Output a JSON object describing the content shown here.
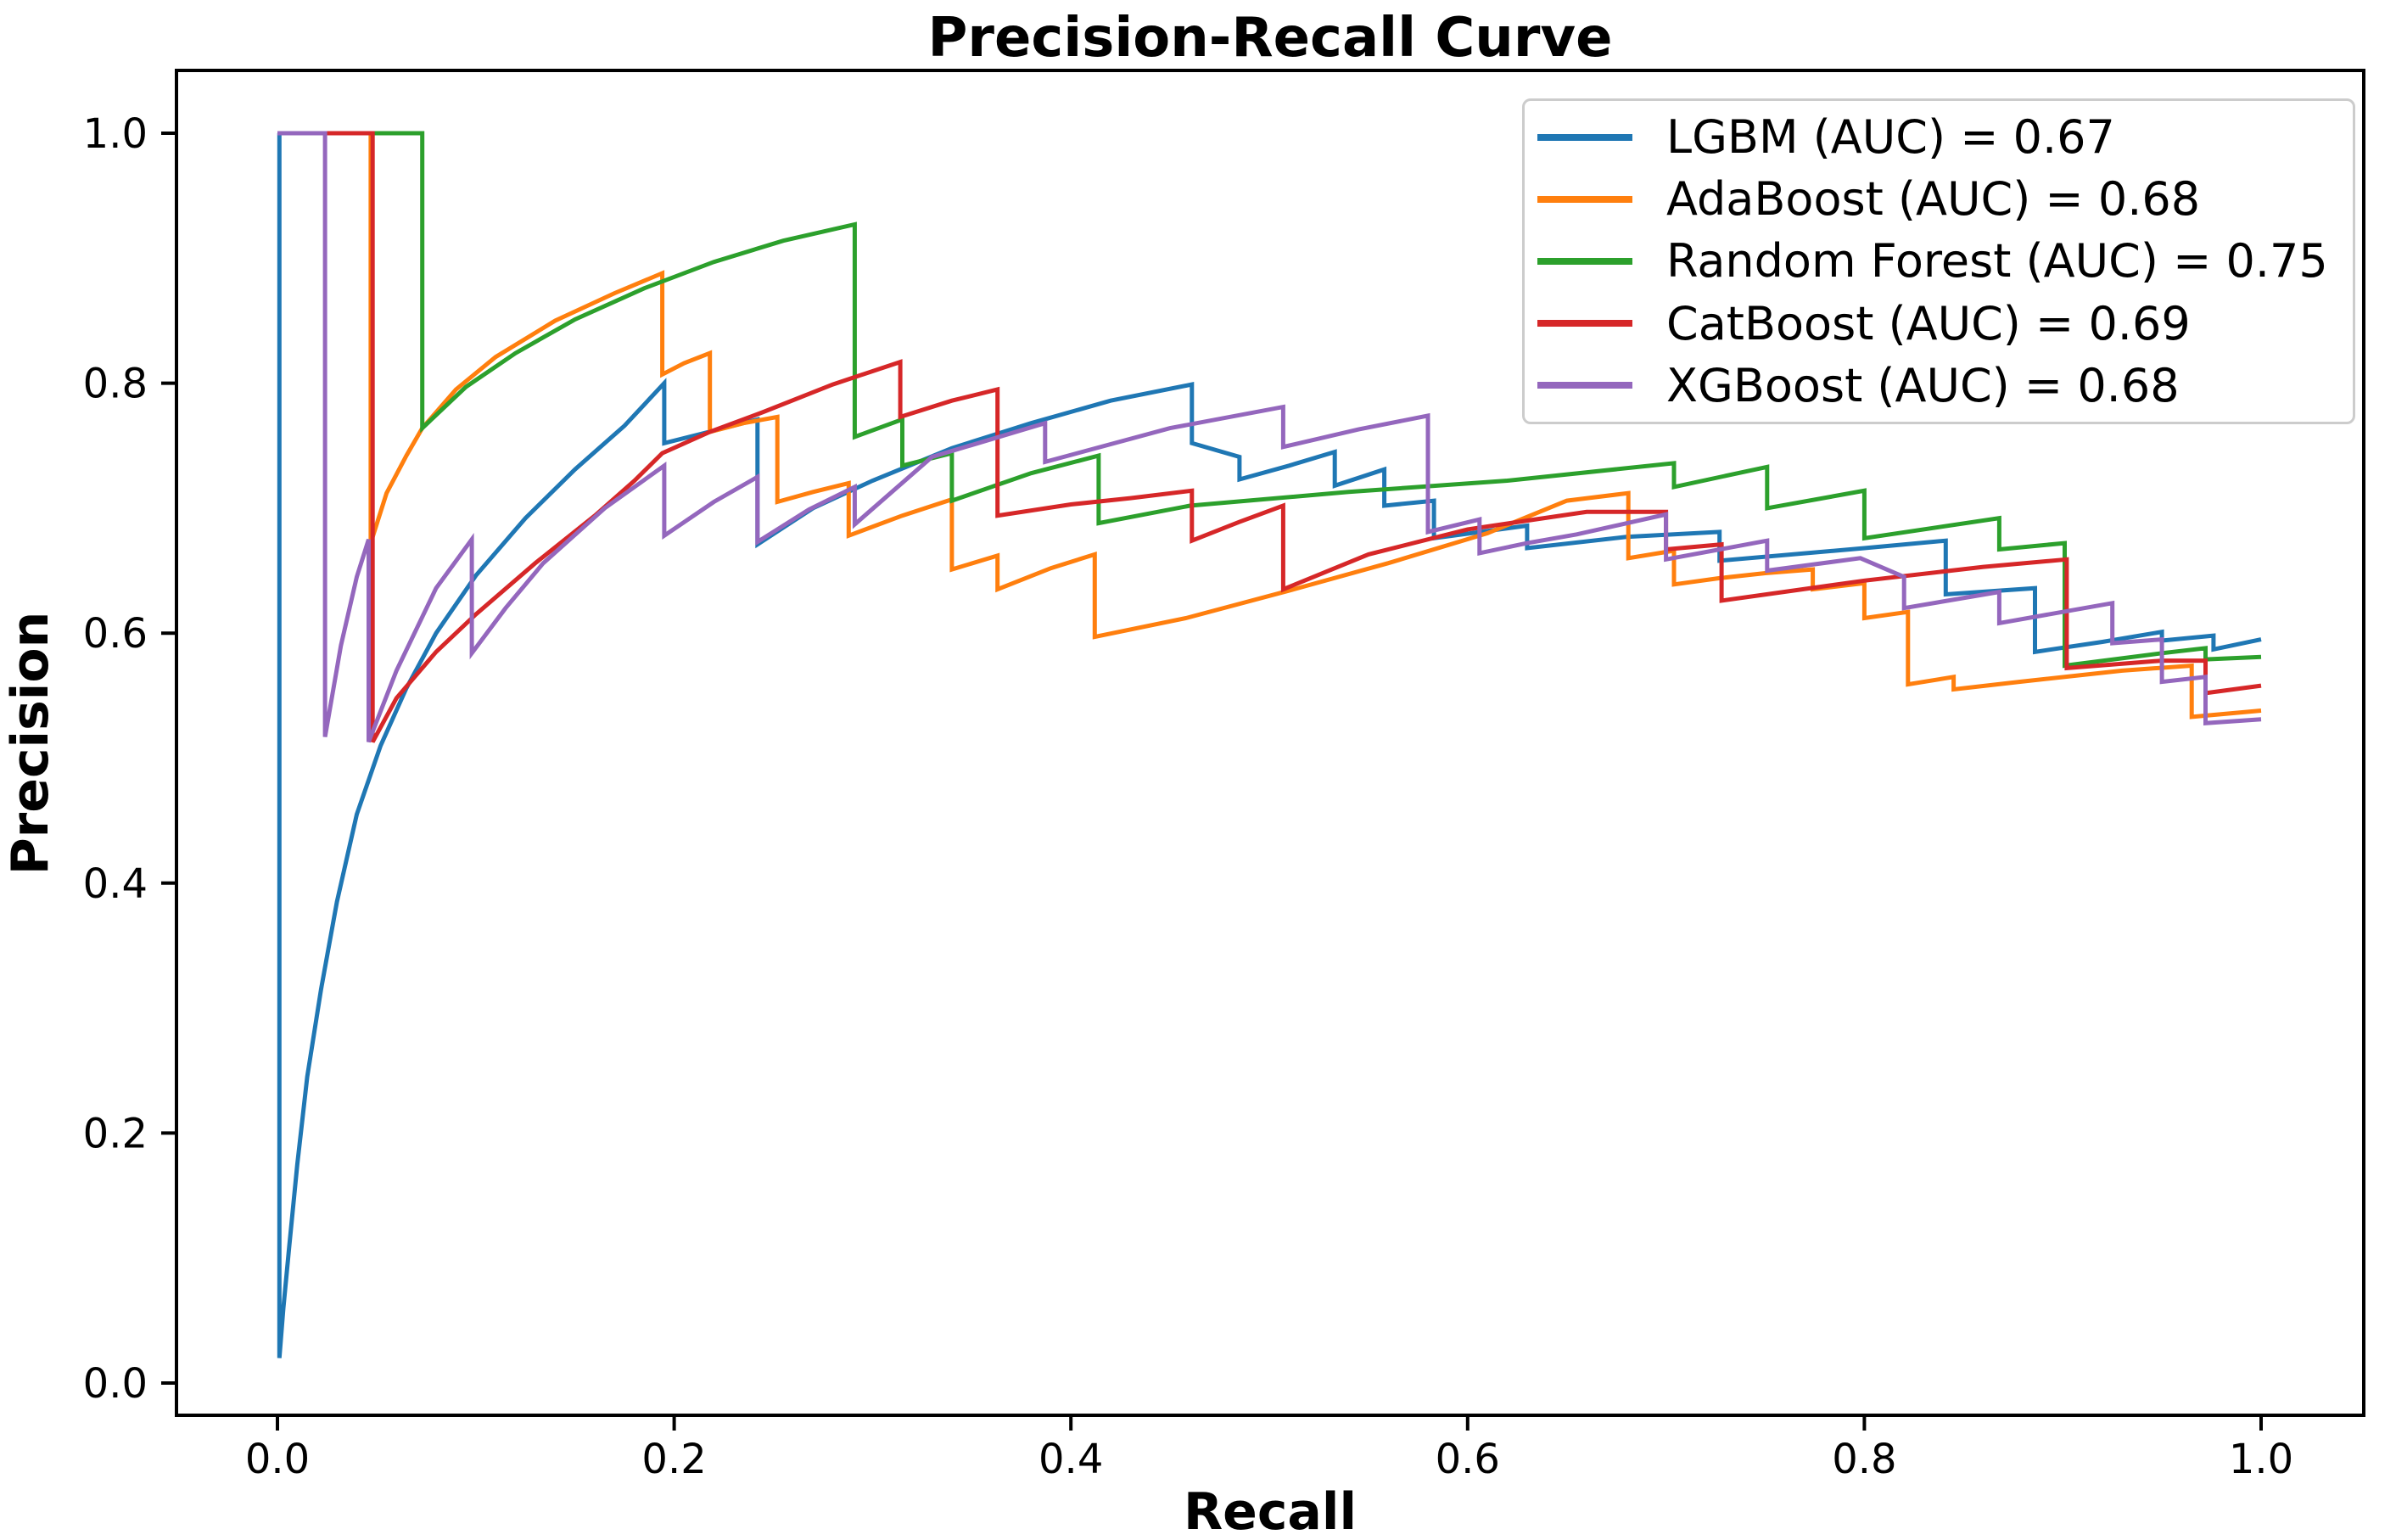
{
  "chart_data": {
    "type": "line",
    "title": "Precision-Recall Curve",
    "xlabel": "Recall",
    "ylabel": "Precision",
    "x_tick_labels": [
      "0.0",
      "0.2",
      "0.4",
      "0.6",
      "0.8",
      "1.0"
    ],
    "y_tick_labels": [
      "0.0",
      "0.2",
      "0.4",
      "0.6",
      "0.8",
      "1.0"
    ],
    "x_ticks": [
      0.0,
      0.2,
      0.4,
      0.6,
      0.8,
      1.0
    ],
    "y_ticks": [
      0.0,
      0.2,
      0.4,
      0.6,
      0.8,
      1.0
    ],
    "xlim": [
      -0.051,
      1.053
    ],
    "ylim": [
      -0.026,
      1.05
    ],
    "grid": false,
    "legend_position": "upper right",
    "series": [
      {
        "name": "LGBM",
        "auc": 0.67,
        "legend_label": "LGBM (AUC) = 0.67",
        "color": "#1f77b4",
        "points": [
          [
            0.0,
            1.0
          ],
          [
            0.001,
            1.0
          ],
          [
            0.001,
            0.02
          ],
          [
            0.003,
            0.06
          ],
          [
            0.006,
            0.11
          ],
          [
            0.01,
            0.175
          ],
          [
            0.015,
            0.245
          ],
          [
            0.022,
            0.315
          ],
          [
            0.03,
            0.385
          ],
          [
            0.04,
            0.455
          ],
          [
            0.052,
            0.51
          ],
          [
            0.065,
            0.556
          ],
          [
            0.08,
            0.6
          ],
          [
            0.1,
            0.646
          ],
          [
            0.125,
            0.692
          ],
          [
            0.15,
            0.731
          ],
          [
            0.175,
            0.766
          ],
          [
            0.195,
            0.8
          ],
          [
            0.195,
            0.752
          ],
          [
            0.22,
            0.762
          ],
          [
            0.242,
            0.771
          ],
          [
            0.242,
            0.671
          ],
          [
            0.27,
            0.7
          ],
          [
            0.3,
            0.722
          ],
          [
            0.34,
            0.748
          ],
          [
            0.38,
            0.768
          ],
          [
            0.42,
            0.786
          ],
          [
            0.461,
            0.799
          ],
          [
            0.461,
            0.752
          ],
          [
            0.485,
            0.741
          ],
          [
            0.485,
            0.723
          ],
          [
            0.51,
            0.734
          ],
          [
            0.533,
            0.745
          ],
          [
            0.533,
            0.718
          ],
          [
            0.558,
            0.731
          ],
          [
            0.558,
            0.702
          ],
          [
            0.583,
            0.706
          ],
          [
            0.583,
            0.676
          ],
          [
            0.63,
            0.686
          ],
          [
            0.63,
            0.668
          ],
          [
            0.68,
            0.677
          ],
          [
            0.727,
            0.681
          ],
          [
            0.727,
            0.658
          ],
          [
            0.8,
            0.668
          ],
          [
            0.841,
            0.674
          ],
          [
            0.841,
            0.631
          ],
          [
            0.886,
            0.636
          ],
          [
            0.886,
            0.585
          ],
          [
            0.92,
            0.593
          ],
          [
            0.95,
            0.601
          ],
          [
            0.95,
            0.594
          ],
          [
            0.976,
            0.598
          ],
          [
            0.976,
            0.587
          ],
          [
            1.0,
            0.595
          ]
        ]
      },
      {
        "name": "AdaBoost",
        "auc": 0.68,
        "legend_label": "AdaBoost (AUC) = 0.68",
        "color": "#ff7f0e",
        "points": [
          [
            0.0,
            1.0
          ],
          [
            0.047,
            1.0
          ],
          [
            0.047,
            0.672
          ],
          [
            0.055,
            0.712
          ],
          [
            0.065,
            0.742
          ],
          [
            0.073,
            0.764
          ],
          [
            0.09,
            0.795
          ],
          [
            0.11,
            0.821
          ],
          [
            0.14,
            0.85
          ],
          [
            0.17,
            0.872
          ],
          [
            0.194,
            0.888
          ],
          [
            0.194,
            0.807
          ],
          [
            0.205,
            0.816
          ],
          [
            0.218,
            0.824
          ],
          [
            0.218,
            0.761
          ],
          [
            0.235,
            0.768
          ],
          [
            0.252,
            0.773
          ],
          [
            0.252,
            0.705
          ],
          [
            0.27,
            0.713
          ],
          [
            0.288,
            0.72
          ],
          [
            0.288,
            0.678
          ],
          [
            0.315,
            0.694
          ],
          [
            0.34,
            0.707
          ],
          [
            0.34,
            0.651
          ],
          [
            0.363,
            0.662
          ],
          [
            0.363,
            0.635
          ],
          [
            0.39,
            0.652
          ],
          [
            0.412,
            0.663
          ],
          [
            0.412,
            0.597
          ],
          [
            0.458,
            0.612
          ],
          [
            0.51,
            0.634
          ],
          [
            0.56,
            0.656
          ],
          [
            0.61,
            0.68
          ],
          [
            0.65,
            0.706
          ],
          [
            0.681,
            0.712
          ],
          [
            0.681,
            0.66
          ],
          [
            0.704,
            0.666
          ],
          [
            0.704,
            0.639
          ],
          [
            0.727,
            0.644
          ],
          [
            0.75,
            0.648
          ],
          [
            0.774,
            0.651
          ],
          [
            0.774,
            0.635
          ],
          [
            0.8,
            0.64
          ],
          [
            0.8,
            0.612
          ],
          [
            0.822,
            0.617
          ],
          [
            0.822,
            0.559
          ],
          [
            0.845,
            0.565
          ],
          [
            0.845,
            0.555
          ],
          [
            0.878,
            0.561
          ],
          [
            0.93,
            0.57
          ],
          [
            0.965,
            0.574
          ],
          [
            0.965,
            0.533
          ],
          [
            1.0,
            0.538
          ]
        ]
      },
      {
        "name": "Random Forest",
        "auc": 0.75,
        "legend_label": "Random Forest (AUC) = 0.75",
        "color": "#2ca02c",
        "points": [
          [
            0.0,
            1.0
          ],
          [
            0.073,
            1.0
          ],
          [
            0.073,
            0.764
          ],
          [
            0.095,
            0.797
          ],
          [
            0.12,
            0.824
          ],
          [
            0.15,
            0.851
          ],
          [
            0.185,
            0.876
          ],
          [
            0.22,
            0.897
          ],
          [
            0.255,
            0.914
          ],
          [
            0.291,
            0.927
          ],
          [
            0.291,
            0.757
          ],
          [
            0.315,
            0.771
          ],
          [
            0.315,
            0.734
          ],
          [
            0.34,
            0.744
          ],
          [
            0.34,
            0.706
          ],
          [
            0.38,
            0.728
          ],
          [
            0.414,
            0.742
          ],
          [
            0.414,
            0.688
          ],
          [
            0.46,
            0.702
          ],
          [
            0.54,
            0.713
          ],
          [
            0.62,
            0.722
          ],
          [
            0.704,
            0.736
          ],
          [
            0.704,
            0.717
          ],
          [
            0.751,
            0.733
          ],
          [
            0.751,
            0.7
          ],
          [
            0.8,
            0.714
          ],
          [
            0.8,
            0.676
          ],
          [
            0.868,
            0.692
          ],
          [
            0.868,
            0.667
          ],
          [
            0.901,
            0.672
          ],
          [
            0.901,
            0.574
          ],
          [
            0.95,
            0.584
          ],
          [
            0.972,
            0.588
          ],
          [
            0.972,
            0.579
          ],
          [
            1.0,
            0.581
          ]
        ]
      },
      {
        "name": "CatBoost",
        "auc": 0.69,
        "legend_label": "CatBoost (AUC) = 0.69",
        "color": "#d62728",
        "points": [
          [
            0.0,
            1.0
          ],
          [
            0.048,
            1.0
          ],
          [
            0.048,
            0.513
          ],
          [
            0.06,
            0.548
          ],
          [
            0.08,
            0.585
          ],
          [
            0.1,
            0.615
          ],
          [
            0.13,
            0.656
          ],
          [
            0.16,
            0.694
          ],
          [
            0.18,
            0.722
          ],
          [
            0.194,
            0.744
          ],
          [
            0.218,
            0.761
          ],
          [
            0.245,
            0.777
          ],
          [
            0.28,
            0.799
          ],
          [
            0.314,
            0.817
          ],
          [
            0.314,
            0.773
          ],
          [
            0.34,
            0.786
          ],
          [
            0.363,
            0.795
          ],
          [
            0.363,
            0.694
          ],
          [
            0.4,
            0.703
          ],
          [
            0.43,
            0.708
          ],
          [
            0.461,
            0.714
          ],
          [
            0.461,
            0.674
          ],
          [
            0.485,
            0.689
          ],
          [
            0.507,
            0.702
          ],
          [
            0.507,
            0.635
          ],
          [
            0.55,
            0.663
          ],
          [
            0.6,
            0.683
          ],
          [
            0.66,
            0.697
          ],
          [
            0.7,
            0.697
          ],
          [
            0.7,
            0.667
          ],
          [
            0.728,
            0.671
          ],
          [
            0.728,
            0.626
          ],
          [
            0.8,
            0.642
          ],
          [
            0.86,
            0.653
          ],
          [
            0.902,
            0.659
          ],
          [
            0.902,
            0.572
          ],
          [
            0.95,
            0.578
          ],
          [
            0.972,
            0.578
          ],
          [
            0.972,
            0.552
          ],
          [
            1.0,
            0.558
          ]
        ]
      },
      {
        "name": "XGBoost",
        "auc": 0.68,
        "legend_label": "XGBoost (AUC) = 0.68",
        "color": "#9467bd",
        "points": [
          [
            0.0,
            1.0
          ],
          [
            0.024,
            1.0
          ],
          [
            0.024,
            0.517
          ],
          [
            0.032,
            0.59
          ],
          [
            0.04,
            0.645
          ],
          [
            0.046,
            0.675
          ],
          [
            0.046,
            0.513
          ],
          [
            0.06,
            0.57
          ],
          [
            0.08,
            0.636
          ],
          [
            0.098,
            0.675
          ],
          [
            0.098,
            0.584
          ],
          [
            0.115,
            0.62
          ],
          [
            0.134,
            0.656
          ],
          [
            0.165,
            0.7
          ],
          [
            0.195,
            0.734
          ],
          [
            0.195,
            0.678
          ],
          [
            0.22,
            0.705
          ],
          [
            0.242,
            0.725
          ],
          [
            0.242,
            0.673
          ],
          [
            0.268,
            0.699
          ],
          [
            0.291,
            0.717
          ],
          [
            0.291,
            0.687
          ],
          [
            0.33,
            0.741
          ],
          [
            0.387,
            0.768
          ],
          [
            0.387,
            0.737
          ],
          [
            0.45,
            0.764
          ],
          [
            0.507,
            0.781
          ],
          [
            0.507,
            0.749
          ],
          [
            0.545,
            0.763
          ],
          [
            0.58,
            0.774
          ],
          [
            0.58,
            0.681
          ],
          [
            0.606,
            0.691
          ],
          [
            0.606,
            0.664
          ],
          [
            0.63,
            0.672
          ],
          [
            0.655,
            0.679
          ],
          [
            0.7,
            0.695
          ],
          [
            0.7,
            0.659
          ],
          [
            0.751,
            0.674
          ],
          [
            0.751,
            0.65
          ],
          [
            0.798,
            0.66
          ],
          [
            0.82,
            0.645
          ],
          [
            0.82,
            0.62
          ],
          [
            0.868,
            0.633
          ],
          [
            0.868,
            0.608
          ],
          [
            0.925,
            0.624
          ],
          [
            0.925,
            0.592
          ],
          [
            0.95,
            0.595
          ],
          [
            0.95,
            0.561
          ],
          [
            0.972,
            0.565
          ],
          [
            0.972,
            0.528
          ],
          [
            1.0,
            0.531
          ]
        ]
      }
    ]
  }
}
